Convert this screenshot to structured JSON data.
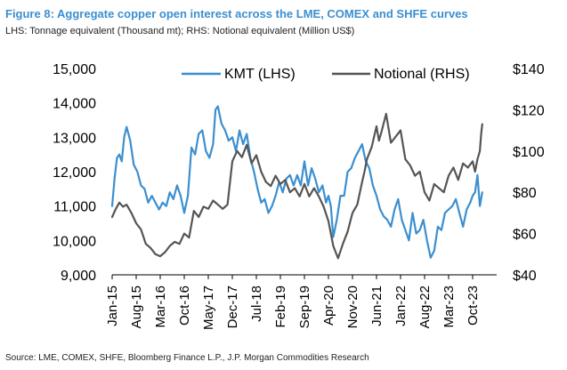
{
  "chart_data": {
    "type": "line",
    "title": "Figure 8: Aggregate copper open interest across the LME, COMEX and SHFE curves",
    "subtitle": "LHS: Tonnage equivalent (Thousand mt); RHS: Notional equivalent (Million US$)",
    "source": "Source: LME, COMEX, SHFE, Bloomberg Finance L.P., J.P. Morgan Commodities Research",
    "x_ticks": [
      "Jan-15",
      "Aug-15",
      "Mar-16",
      "Oct-16",
      "May-17",
      "Dec-17",
      "Jul-18",
      "Feb-19",
      "Sep-19",
      "Apr-20",
      "Nov-20",
      "Jun-21",
      "Jan-22",
      "Aug-22",
      "Mar-23",
      "Oct-23"
    ],
    "y_left_ticks": [
      "9,000",
      "10,000",
      "11,000",
      "12,000",
      "13,000",
      "14,000",
      "15,000"
    ],
    "y_left_lim": [
      9000,
      15000
    ],
    "y_right_ticks": [
      "$40",
      "$60",
      "$80",
      "$100",
      "$120",
      "$140"
    ],
    "y_right_lim": [
      40,
      140
    ],
    "x_end_index": 15.4,
    "legend": [
      "KMT (LHS)",
      "Notional (RHS)"
    ],
    "series": [
      {
        "name": "KMT (LHS)",
        "axis": "left",
        "color": "#3b8fd0",
        "x": [
          0,
          0.1,
          0.2,
          0.3,
          0.4,
          0.5,
          0.6,
          0.75,
          0.9,
          1.05,
          1.2,
          1.35,
          1.5,
          1.65,
          1.8,
          1.95,
          2.1,
          2.25,
          2.4,
          2.55,
          2.7,
          2.85,
          3.0,
          3.15,
          3.3,
          3.45,
          3.6,
          3.75,
          3.9,
          4.05,
          4.2,
          4.3,
          4.4,
          4.55,
          4.7,
          4.85,
          5.0,
          5.15,
          5.3,
          5.45,
          5.6,
          5.75,
          5.9,
          6.05,
          6.2,
          6.35,
          6.5,
          6.65,
          6.8,
          6.95,
          7.1,
          7.25,
          7.4,
          7.55,
          7.7,
          7.85,
          8.0,
          8.15,
          8.3,
          8.45,
          8.6,
          8.75,
          8.9,
          9.0,
          9.1,
          9.2,
          9.35,
          9.5,
          9.65,
          9.8,
          9.95,
          10.1,
          10.25,
          10.4,
          10.55,
          10.7,
          10.85,
          11.0,
          11.15,
          11.3,
          11.45,
          11.6,
          11.75,
          11.9,
          12.05,
          12.2,
          12.35,
          12.5,
          12.65,
          12.8,
          12.95,
          13.1,
          13.25,
          13.4,
          13.55,
          13.7,
          13.85,
          14.0,
          14.15,
          14.3,
          14.45,
          14.6,
          14.75,
          14.9,
          15.0,
          15.1,
          15.2,
          15.3,
          15.4
        ],
        "values": [
          11000,
          11800,
          12400,
          12500,
          12300,
          13000,
          13300,
          12900,
          12200,
          12000,
          11600,
          11500,
          11100,
          11300,
          11100,
          10900,
          11100,
          11000,
          11400,
          11200,
          11600,
          11300,
          10800,
          11300,
          12700,
          12500,
          13100,
          13200,
          12600,
          12400,
          12800,
          13800,
          13900,
          13400,
          13200,
          12900,
          13000,
          12600,
          13200,
          12800,
          13100,
          12400,
          12000,
          11500,
          11100,
          11200,
          10800,
          11000,
          11300,
          11700,
          11400,
          11800,
          11900,
          11600,
          11900,
          11600,
          12300,
          11600,
          12100,
          11800,
          11400,
          11600,
          11100,
          11300,
          11000,
          10100,
          10600,
          11300,
          11300,
          12000,
          12100,
          12400,
          12600,
          12800,
          12300,
          12100,
          11600,
          11300,
          10900,
          10700,
          10600,
          10400,
          10900,
          11200,
          10600,
          10300,
          10000,
          10800,
          10200,
          10300,
          10600,
          10000,
          9500,
          9700,
          10400,
          10300,
          10800,
          10900,
          11000,
          11200,
          10800,
          10400,
          10900,
          11100,
          11300,
          11400,
          11900,
          11000,
          11400
        ]
      },
      {
        "name": "Notional (RHS)",
        "axis": "right",
        "color": "#555555",
        "x": [
          0,
          0.15,
          0.3,
          0.45,
          0.6,
          0.8,
          1.0,
          1.2,
          1.4,
          1.6,
          1.8,
          2.0,
          2.2,
          2.4,
          2.6,
          2.8,
          3.0,
          3.2,
          3.4,
          3.6,
          3.8,
          4.0,
          4.2,
          4.4,
          4.6,
          4.8,
          5.0,
          5.2,
          5.4,
          5.6,
          5.8,
          6.0,
          6.2,
          6.4,
          6.6,
          6.8,
          7.0,
          7.2,
          7.4,
          7.6,
          7.8,
          8.0,
          8.2,
          8.4,
          8.6,
          8.8,
          9.0,
          9.2,
          9.4,
          9.6,
          9.8,
          10.0,
          10.2,
          10.4,
          10.5,
          10.6,
          10.8,
          11.0,
          11.1,
          11.2,
          11.4,
          11.6,
          11.8,
          12.0,
          12.2,
          12.4,
          12.6,
          12.8,
          13.0,
          13.2,
          13.4,
          13.6,
          13.8,
          14.0,
          14.2,
          14.4,
          14.6,
          14.8,
          15.0,
          15.1,
          15.2,
          15.3,
          15.35,
          15.4
        ],
        "values": [
          68,
          72,
          75,
          73,
          74,
          70,
          65,
          62,
          55,
          53,
          50,
          49,
          51,
          54,
          56,
          55,
          60,
          58,
          71,
          68,
          73,
          72,
          76,
          74,
          72,
          74,
          95,
          100,
          97,
          103,
          94,
          98,
          90,
          85,
          83,
          88,
          84,
          86,
          80,
          82,
          78,
          84,
          78,
          82,
          78,
          73,
          66,
          54,
          48,
          55,
          61,
          70,
          74,
          85,
          90,
          96,
          102,
          112,
          105,
          109,
          118,
          104,
          107,
          110,
          96,
          93,
          88,
          90,
          80,
          76,
          84,
          82,
          80,
          88,
          92,
          86,
          94,
          92,
          95,
          90,
          96,
          100,
          108,
          113
        ]
      }
    ]
  }
}
